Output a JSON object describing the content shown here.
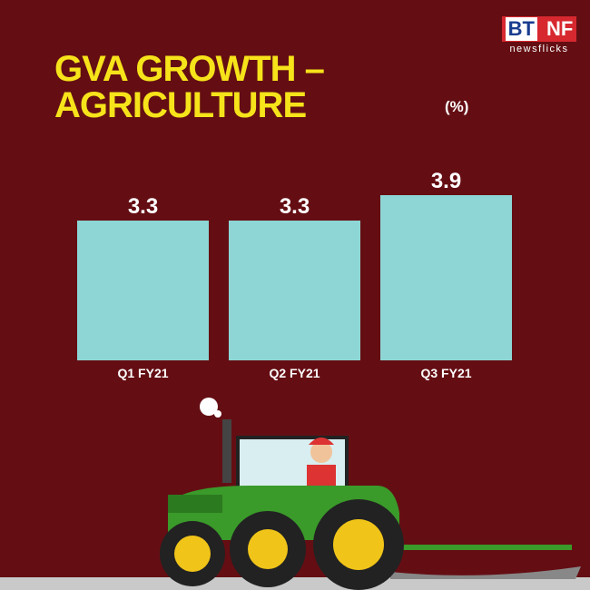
{
  "chart_data": {
    "type": "bar",
    "title": "GVA GROWTH – AGRICULTURE",
    "unit": "(%)",
    "categories": [
      "Q1 FY21",
      "Q2 FY21",
      "Q3 FY21"
    ],
    "values": [
      3.3,
      3.3,
      3.9
    ],
    "color": "#8ed6d5"
  },
  "logo": {
    "left": "BT",
    "right": "NF",
    "sub": "newsflicks"
  }
}
